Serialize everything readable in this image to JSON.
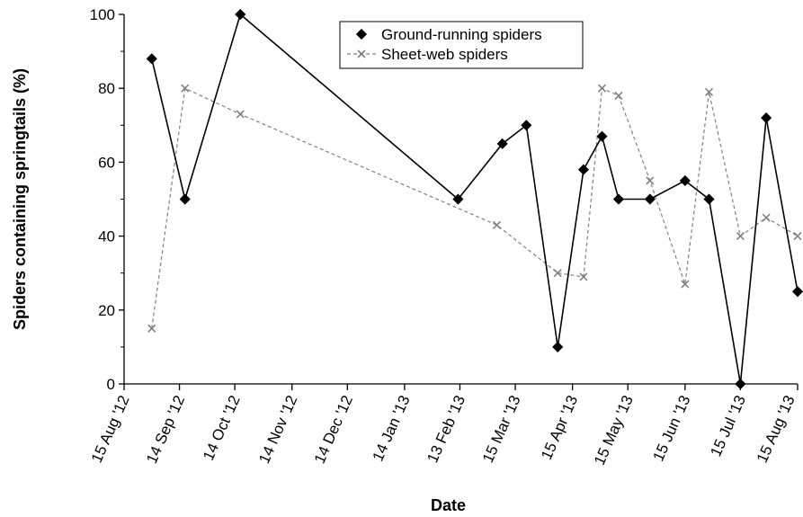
{
  "chart_data": {
    "type": "line",
    "xlabel": "Date",
    "ylabel": "Spiders containing springtails (%)",
    "ylim": [
      0,
      100
    ],
    "y_ticks": [
      0,
      20,
      40,
      60,
      80,
      100
    ],
    "xlim": [
      "2012-08-15",
      "2013-08-15"
    ],
    "x_ticks": [
      {
        "date": "2012-08-15",
        "label": "15 Aug '12"
      },
      {
        "date": "2012-09-14",
        "label": "14 Sep '12"
      },
      {
        "date": "2012-10-14",
        "label": "14 Oct '12"
      },
      {
        "date": "2012-11-14",
        "label": "14 Nov '12"
      },
      {
        "date": "2012-12-14",
        "label": "14 Dec '12"
      },
      {
        "date": "2013-01-14",
        "label": "14 Jan '13"
      },
      {
        "date": "2013-02-13",
        "label": "13 Feb '13"
      },
      {
        "date": "2013-03-15",
        "label": "15 Mar '13"
      },
      {
        "date": "2013-04-15",
        "label": "15 Apr '13"
      },
      {
        "date": "2013-05-15",
        "label": "15 May '13"
      },
      {
        "date": "2013-06-15",
        "label": "15 Jun '13"
      },
      {
        "date": "2013-07-15",
        "label": "15 Jul '13"
      },
      {
        "date": "2013-08-15",
        "label": "15 Aug '13"
      }
    ],
    "grid": false,
    "legend_position": "top-center",
    "series": [
      {
        "name": "Ground-running spiders",
        "marker": "diamond",
        "line_style": "solid",
        "color": "#000000",
        "points": [
          {
            "x": "2012-08-30",
            "y": 88
          },
          {
            "x": "2012-09-17",
            "y": 50
          },
          {
            "x": "2012-10-17",
            "y": 100
          },
          {
            "x": "2013-02-12",
            "y": 50
          },
          {
            "x": "2013-03-08",
            "y": 65
          },
          {
            "x": "2013-03-21",
            "y": 70
          },
          {
            "x": "2013-04-07",
            "y": 10
          },
          {
            "x": "2013-04-21",
            "y": 58
          },
          {
            "x": "2013-05-01",
            "y": 67
          },
          {
            "x": "2013-05-10",
            "y": 50
          },
          {
            "x": "2013-05-27",
            "y": 50
          },
          {
            "x": "2013-06-15",
            "y": 55
          },
          {
            "x": "2013-06-28",
            "y": 50
          },
          {
            "x": "2013-07-15",
            "y": 0
          },
          {
            "x": "2013-07-29",
            "y": 72
          },
          {
            "x": "2013-08-15",
            "y": 25
          }
        ]
      },
      {
        "name": "Sheet-web spiders",
        "marker": "x",
        "line_style": "dashed",
        "color": "#808080",
        "points": [
          {
            "x": "2012-08-30",
            "y": 15
          },
          {
            "x": "2012-09-17",
            "y": 80
          },
          {
            "x": "2012-10-17",
            "y": 73
          },
          {
            "x": "2013-03-05",
            "y": 43
          },
          {
            "x": "2013-04-07",
            "y": 30
          },
          {
            "x": "2013-04-21",
            "y": 29
          },
          {
            "x": "2013-05-01",
            "y": 80
          },
          {
            "x": "2013-05-10",
            "y": 78
          },
          {
            "x": "2013-05-27",
            "y": 55
          },
          {
            "x": "2013-06-15",
            "y": 27
          },
          {
            "x": "2013-06-28",
            "y": 79
          },
          {
            "x": "2013-07-15",
            "y": 40
          },
          {
            "x": "2013-07-29",
            "y": 45
          },
          {
            "x": "2013-08-15",
            "y": 40
          }
        ]
      }
    ]
  }
}
